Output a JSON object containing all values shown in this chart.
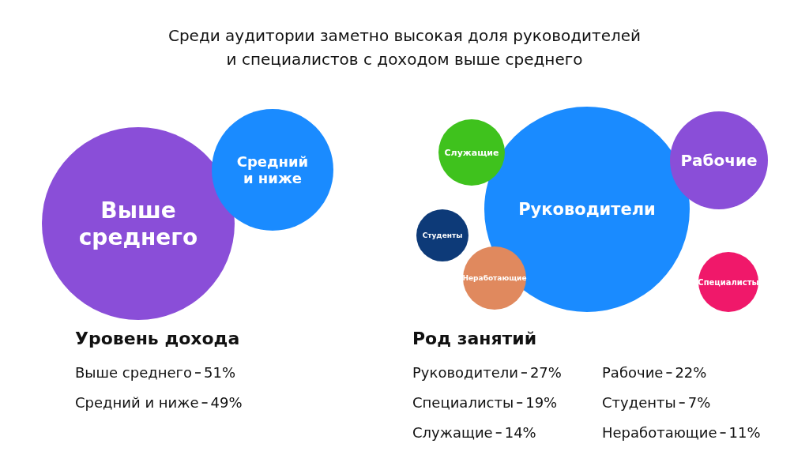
{
  "chart_data": [
    {
      "type": "other",
      "title": "Среди аудитории заметно высокая доля руководителей  и специалистов с доходом выше среднего",
      "subtitle": "Уровень дохода",
      "categories": [
        "Выше среднего",
        "Средний и ниже"
      ],
      "values": [
        51,
        49
      ],
      "value_labels": [
        "51%",
        "49%"
      ],
      "colors": [
        "#8a4ed8",
        "#1a8bff"
      ]
    },
    {
      "type": "other",
      "subtitle": "Род занятий",
      "categories": [
        "Руководители",
        "Рабочие",
        "Специалисты",
        "Студенты",
        "Служащие",
        "Неработающие"
      ],
      "values": [
        27,
        22,
        19,
        7,
        14,
        11
      ],
      "value_labels": [
        "27%",
        "22%",
        "19%",
        "7%",
        "14%",
        "11%"
      ],
      "colors": [
        "#1a8bff",
        "#8a4ed8",
        "#f0186a",
        "#0d3a78",
        "#3fc21d",
        "#e0895e"
      ]
    }
  ]
}
